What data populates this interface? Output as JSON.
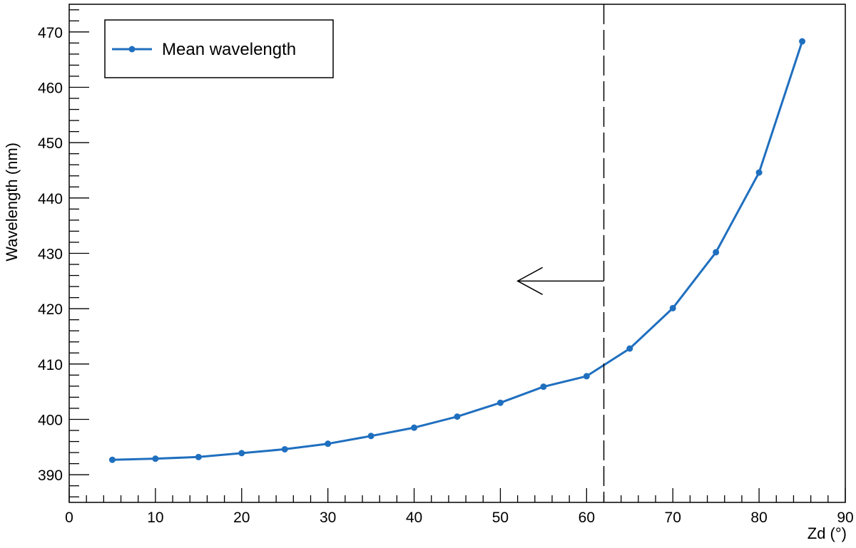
{
  "chart_data": {
    "type": "line",
    "title": "",
    "xlabel": "Zd (°)",
    "ylabel": "Wavelength (nm)",
    "xlim": [
      0,
      90
    ],
    "ylim": [
      385,
      475
    ],
    "x_ticks": [
      0,
      10,
      20,
      30,
      40,
      50,
      60,
      70,
      80,
      90
    ],
    "y_ticks": [
      390,
      400,
      410,
      420,
      430,
      440,
      450,
      460,
      470
    ],
    "grid": false,
    "legend_position": "top-left",
    "series": [
      {
        "name": "Mean wavelength",
        "color": "#1f6fbf",
        "x": [
          5,
          10,
          15,
          20,
          25,
          30,
          35,
          40,
          45,
          50,
          55,
          60,
          65,
          70,
          75,
          80,
          85
        ],
        "y": [
          392.7,
          392.9,
          393.2,
          393.9,
          394.6,
          395.6,
          397.0,
          398.5,
          400.5,
          403.0,
          405.9,
          407.8,
          412.8,
          420.1,
          430.2,
          444.6,
          468.3
        ]
      }
    ],
    "annotations": {
      "vertical_line_x": 62,
      "arrow_direction": "left",
      "arrow_y": 425,
      "arrow_x_start": 62,
      "arrow_x_end": 52
    }
  }
}
